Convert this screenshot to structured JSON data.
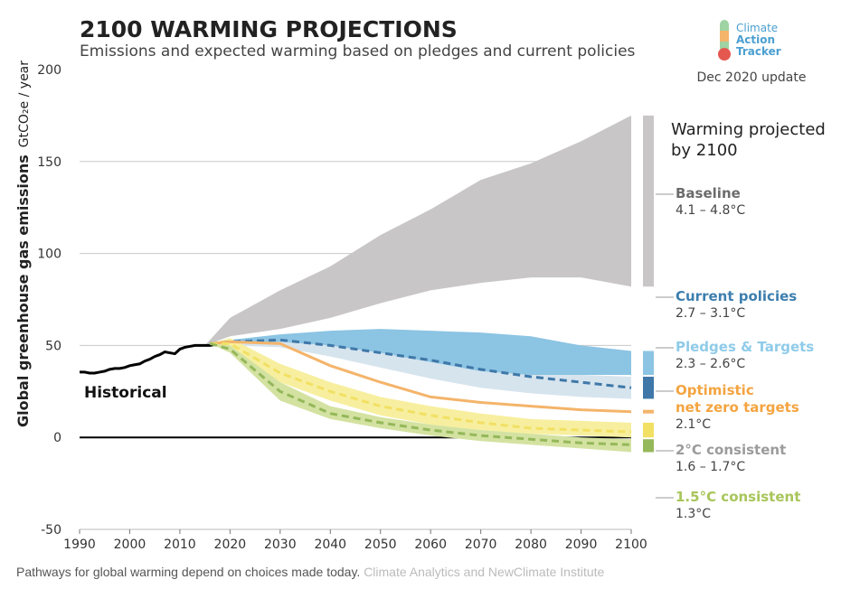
{
  "chart_data": {
    "type": "area",
    "title": "2100 WARMING PROJECTIONS",
    "subtitle": "Emissions and expected warming based on pledges and current policies",
    "ylabel": "Global greenhouse gas emissions",
    "yunit": "GtCO₂e / year",
    "logo": [
      "Climate",
      "Action",
      "Tracker"
    ],
    "update": "Dec 2020 update",
    "legend_title": "Warming projected by 2100",
    "caption": "Pathways for global warming depend on choices made today.",
    "source": "Climate Analytics and NewClimate Institute",
    "xlim": [
      1990,
      2100
    ],
    "xticks": [
      1990,
      2000,
      2010,
      2020,
      2030,
      2040,
      2050,
      2060,
      2070,
      2080,
      2090,
      2100
    ],
    "ylim": [
      -50,
      200
    ],
    "yticks": [
      -50,
      0,
      50,
      100,
      150,
      200
    ],
    "grid": true,
    "series": [
      {
        "name": "Historical",
        "color": "#000000",
        "x": [
          1990,
          1991,
          1992,
          1993,
          1994,
          1995,
          1996,
          1997,
          1998,
          1999,
          2000,
          2001,
          2002,
          2003,
          2004,
          2005,
          2006,
          2007,
          2008,
          2009,
          2010,
          2011,
          2012,
          2013,
          2014,
          2015,
          2016,
          2017
        ],
        "values": [
          35.5,
          35.5,
          35,
          35,
          35.5,
          36,
          37,
          37.5,
          37.5,
          38,
          39,
          39.5,
          40,
          41.5,
          42.5,
          44,
          45,
          46.5,
          46,
          45.5,
          48,
          49,
          49.5,
          50,
          50,
          50,
          50,
          50.5
        ]
      },
      {
        "name": "Baseline",
        "color": "#c8c6c6",
        "label_color": "#6b6b6b",
        "range": "4.1 – 4.8°C",
        "x": [
          2015,
          2020,
          2030,
          2040,
          2050,
          2060,
          2070,
          2080,
          2090,
          2100
        ],
        "upper": [
          50,
          65,
          80,
          93,
          110,
          124,
          140,
          149,
          161,
          175
        ],
        "lower": [
          50,
          55,
          59,
          65,
          73,
          80,
          84,
          87,
          87,
          82
        ]
      },
      {
        "name": "Pledges & Targets",
        "color": "#d6e4ee",
        "label_color": "#8fcbe9",
        "range": "2.3 – 2.6°C",
        "x": [
          2016,
          2020,
          2030,
          2040,
          2050,
          2060,
          2070,
          2080,
          2090,
          2100
        ],
        "upper": [
          51,
          52,
          53,
          52,
          48,
          43,
          38,
          35,
          34,
          33
        ],
        "lower": [
          51,
          50,
          49,
          44,
          38,
          32,
          27,
          24,
          22,
          21
        ],
        "median": [
          51,
          52,
          53,
          50,
          46,
          42,
          37,
          33,
          30,
          27
        ],
        "median_color": "#3f78a8"
      },
      {
        "name": "Current policies",
        "color": "#8cc4e3",
        "label_color": "#3d7fae",
        "range": "2.7 – 3.1°C",
        "x": [
          2016,
          2020,
          2030,
          2040,
          2050,
          2060,
          2070,
          2080,
          2090,
          2100
        ],
        "upper": [
          51,
          53,
          56,
          58,
          59,
          58,
          57,
          55,
          50,
          47
        ],
        "lower": [
          51,
          51,
          52,
          50,
          46,
          41,
          36,
          34,
          34,
          34
        ]
      },
      {
        "name": "Optimistic\nnet zero targets",
        "color": "#f4b46a",
        "label_color": "#f4a440",
        "range": "2.1°C",
        "x": [
          2016,
          2020,
          2030,
          2040,
          2050,
          2060,
          2070,
          2080,
          2090,
          2100
        ],
        "values": [
          51,
          52,
          51,
          39,
          30,
          22,
          19,
          17,
          15,
          14
        ]
      },
      {
        "name": "2°C consistent",
        "color": "#f7ef9f",
        "label_color": "#9b9b9b",
        "range": "1.6 – 1.7°C",
        "x": [
          2016,
          2020,
          2030,
          2040,
          2050,
          2060,
          2070,
          2080,
          2090,
          2100
        ],
        "upper": [
          51,
          54,
          40,
          30,
          22,
          17,
          13,
          10,
          9,
          8
        ],
        "lower": [
          51,
          48,
          30,
          20,
          12,
          7,
          4,
          2,
          1,
          0
        ],
        "median": [
          51,
          51,
          35,
          25,
          17,
          12,
          8,
          5,
          4,
          3
        ],
        "median_color": "#f2e064"
      },
      {
        "name": "1.5°C consistent",
        "color": "#d3e2a1",
        "label_color": "#a8c55a",
        "range": "1.3°C",
        "x": [
          2016,
          2020,
          2030,
          2040,
          2050,
          2060,
          2070,
          2080,
          2090,
          2100
        ],
        "upper": [
          51,
          50,
          30,
          17,
          11,
          7,
          4,
          2,
          0,
          -1
        ],
        "lower": [
          51,
          46,
          20,
          10,
          5,
          1,
          -2,
          -4,
          -6,
          -8
        ],
        "median": [
          51,
          48,
          25,
          13,
          8,
          4,
          1,
          -1,
          -3,
          -4
        ],
        "median_color": "#95b85a"
      }
    ]
  }
}
